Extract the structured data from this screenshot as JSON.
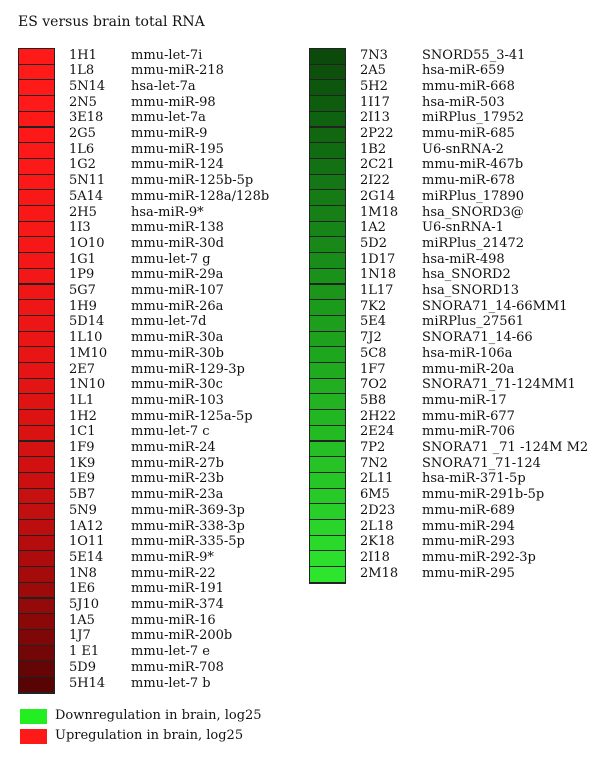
{
  "title": "ES versus brain total RNA",
  "chart_data": {
    "type": "heatmap",
    "title": "ES versus brain total RNA",
    "columns": [
      {
        "direction": "up",
        "rows": [
          {
            "id": "1H1",
            "name": "mmu-let-7i",
            "color": "#ff1a1a"
          },
          {
            "id": "1L8",
            "name": "mmu-miR-218",
            "color": "#ff1a1a"
          },
          {
            "id": "5N14",
            "name": "hsa-let-7a",
            "color": "#ff1a1a"
          },
          {
            "id": "2N5",
            "name": "mmu-miR-98",
            "color": "#fe1a1a"
          },
          {
            "id": "3E18",
            "name": "mmu-let-7a",
            "color": "#fe1919"
          },
          {
            "id": "2G5",
            "name": "mmu-miR-9",
            "color": "#fd1919"
          },
          {
            "id": "1L6",
            "name": "mmu-miR-195",
            "color": "#fc1919"
          },
          {
            "id": "1G2",
            "name": "mmu-miR-124",
            "color": "#fb1919"
          },
          {
            "id": "5N11",
            "name": "mmu-miR-125b-5p",
            "color": "#fa1818"
          },
          {
            "id": "5A14",
            "name": "mmu-miR-128a/128b",
            "color": "#f91818"
          },
          {
            "id": "2H5",
            "name": "hsa-miR-9*",
            "color": "#f81818"
          },
          {
            "id": "1I3",
            "name": "mmu-miR-138",
            "color": "#f71818"
          },
          {
            "id": "1O10",
            "name": "mmu-miR-30d",
            "color": "#f61717"
          },
          {
            "id": "1G1",
            "name": "mmu-let-7 g",
            "color": "#f41717"
          },
          {
            "id": "1P9",
            "name": "mmu-miR-29a",
            "color": "#f31717"
          },
          {
            "id": "5G7",
            "name": "mmu-miR-107",
            "color": "#f11616"
          },
          {
            "id": "1H9",
            "name": "mmu-miR-26a",
            "color": "#ef1616"
          },
          {
            "id": "5D14",
            "name": "mmu-let-7d",
            "color": "#ed1616"
          },
          {
            "id": "1L10",
            "name": "mmu-miR-30a",
            "color": "#eb1515"
          },
          {
            "id": "1M10",
            "name": "mmu-miR-30b",
            "color": "#e91515"
          },
          {
            "id": "2E7",
            "name": "mmu-miR-129-3p",
            "color": "#e61414"
          },
          {
            "id": "1N10",
            "name": "mmu-miR-30c",
            "color": "#e31414"
          },
          {
            "id": "1L1",
            "name": "mmu-miR-103",
            "color": "#e01313"
          },
          {
            "id": "1H2",
            "name": "mmu-miR-125a-5p",
            "color": "#dd1313"
          },
          {
            "id": "1C1",
            "name": "mmu-let-7 c",
            "color": "#d91212"
          },
          {
            "id": "1F9",
            "name": "mmu-miR-24",
            "color": "#d51212"
          },
          {
            "id": "1K9",
            "name": "mmu-miR-27b",
            "color": "#d11111"
          },
          {
            "id": "1E9",
            "name": "mmu-miR-23b",
            "color": "#cc1010"
          },
          {
            "id": "5B7",
            "name": "mmu-miR-23a",
            "color": "#c71010"
          },
          {
            "id": "5N9",
            "name": "mmu-miR-369-3p",
            "color": "#c20f0f"
          },
          {
            "id": "1A12",
            "name": "mmu-miR-338-3p",
            "color": "#bc0e0e"
          },
          {
            "id": "1O11",
            "name": "mmu-miR-335-5p",
            "color": "#b50d0d"
          },
          {
            "id": "5E14",
            "name": "mmu-miR-9*",
            "color": "#ae0c0c"
          },
          {
            "id": "1N8",
            "name": "mmu-miR-22",
            "color": "#a60b0b"
          },
          {
            "id": "1E6",
            "name": "mmu-miR-191",
            "color": "#9d0a0a"
          },
          {
            "id": "5J10",
            "name": "mmu-miR-374",
            "color": "#940909"
          },
          {
            "id": "1A5",
            "name": "mmu-miR-16",
            "color": "#8a0808"
          },
          {
            "id": "1J7",
            "name": "mmu-miR-200b",
            "color": "#7f0707"
          },
          {
            "id": "1 E1",
            "name": "mmu-let-7 e",
            "color": "#730606"
          },
          {
            "id": "5D9",
            "name": "mmu-miR-708",
            "color": "#660505"
          },
          {
            "id": "5H14",
            "name": "mmu-let-7 b",
            "color": "#580404"
          }
        ]
      },
      {
        "direction": "down",
        "rows": [
          {
            "id": "7N3",
            "name": "SNORD55_3-41",
            "color": "#0b4a0b"
          },
          {
            "id": "2A5",
            "name": "hsa-miR-659",
            "color": "#0c500c"
          },
          {
            "id": "5H2",
            "name": "mmu-miR-668",
            "color": "#0d560d"
          },
          {
            "id": "1I17",
            "name": "hsa-miR-503",
            "color": "#0e5c0e"
          },
          {
            "id": "2I13",
            "name": "miRPlus_17952",
            "color": "#0f620f"
          },
          {
            "id": "2P22",
            "name": "mmu-miR-685",
            "color": "#106710"
          },
          {
            "id": "1B2",
            "name": "U6-snRNA-2",
            "color": "#116c11"
          },
          {
            "id": "2C21",
            "name": "mmu-miR-467b",
            "color": "#137113"
          },
          {
            "id": "2I22",
            "name": "mmu-miR-678",
            "color": "#147614"
          },
          {
            "id": "2G14",
            "name": "miRPlus_17890",
            "color": "#157b15"
          },
          {
            "id": "1M18",
            "name": "hsa_SNORD3@",
            "color": "#168016"
          },
          {
            "id": "1A2",
            "name": "U6-snRNA-1",
            "color": "#178417"
          },
          {
            "id": "5D2",
            "name": "miRPlus_21472",
            "color": "#188918"
          },
          {
            "id": "1D17",
            "name": "hsa-miR-498",
            "color": "#198d19"
          },
          {
            "id": "1N18",
            "name": "hsa_SNORD2",
            "color": "#1a921a"
          },
          {
            "id": "1L17",
            "name": "hsa_SNORD13",
            "color": "#1b961b"
          },
          {
            "id": "7K2",
            "name": "SNORA71_14-66MM1",
            "color": "#1c9a1c"
          },
          {
            "id": "5E4",
            "name": "miRPlus_27561",
            "color": "#1d9e1d"
          },
          {
            "id": "7J2",
            "name": "SNORA71_14-66",
            "color": "#1ea21e"
          },
          {
            "id": "5C8",
            "name": "hsa-miR-106a",
            "color": "#1fa61f"
          },
          {
            "id": "1F7",
            "name": "mmu-miR-20a",
            "color": "#20aa20"
          },
          {
            "id": "7O2",
            "name": "SNORA71_71-124MM1",
            "color": "#21ae21"
          },
          {
            "id": "5B8",
            "name": "mmu-miR-17",
            "color": "#22b222"
          },
          {
            "id": "2H22",
            "name": "mmu-miR-677",
            "color": "#23b623"
          },
          {
            "id": "2E24",
            "name": "mmu-miR-706",
            "color": "#24ba24"
          },
          {
            "id": "7P2",
            "name": "SNORA71 _71 -124M M2",
            "color": "#25be25"
          },
          {
            "id": "7N2",
            "name": "SNORA71_71-124",
            "color": "#26c226"
          },
          {
            "id": "2L11",
            "name": "hsa-miR-371-5p",
            "color": "#27c627"
          },
          {
            "id": "6M5",
            "name": "mmu-miR-291b-5p",
            "color": "#28ca28"
          },
          {
            "id": "2D23",
            "name": "mmu-miR-689",
            "color": "#29cf29"
          },
          {
            "id": "2L18",
            "name": "mmu-miR-294",
            "color": "#2ad42a"
          },
          {
            "id": "2K18",
            "name": "mmu-miR-293",
            "color": "#2bd92b"
          },
          {
            "id": "2I18",
            "name": "mmu-miR-292-3p",
            "color": "#2cdf2c"
          },
          {
            "id": "2M18",
            "name": "mmu-miR-295",
            "color": "#2de52d"
          }
        ]
      }
    ],
    "legend": [
      {
        "label": "Downregulation in brain, log25",
        "color": "#22ee22"
      },
      {
        "label": "Upregulation in brain, log25",
        "color": "#ff1a1a"
      }
    ],
    "legend_position": "bottom-left"
  }
}
